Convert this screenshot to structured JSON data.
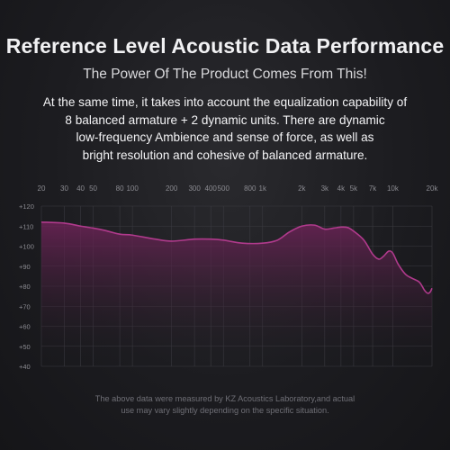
{
  "header": {
    "title": "Reference Level Acoustic Data Performance",
    "subtitle": "The Power Of The Product Comes From This!"
  },
  "description": {
    "lines": [
      "At the same time, it takes into account the equalization capability of",
      "8 balanced armature + 2 dynamic units. There are dynamic",
      "low-frequency Ambience and sense of force, as well as",
      "bright resolution and cohesive of balanced armature."
    ]
  },
  "footer": {
    "lines": [
      "The above data were measured by KZ Acoustics Laboratory,and actual",
      "use may vary slightly depending on the specific situation."
    ]
  },
  "colors": {
    "curve": "#b03a8c",
    "fill_top": "#6e2358",
    "grid": "#3a3a40",
    "tick_text": "#8a8a90"
  },
  "chart_data": {
    "type": "area",
    "title": "",
    "xlabel": "",
    "ylabel": "",
    "x_scale": "log",
    "xlim": [
      20,
      20000
    ],
    "ylim": [
      40,
      120
    ],
    "grid": true,
    "x_ticks": [
      {
        "value": 20,
        "label": "20"
      },
      {
        "value": 30,
        "label": "30"
      },
      {
        "value": 40,
        "label": "40"
      },
      {
        "value": 50,
        "label": "50"
      },
      {
        "value": 80,
        "label": "80"
      },
      {
        "value": 100,
        "label": "100"
      },
      {
        "value": 200,
        "label": "200"
      },
      {
        "value": 300,
        "label": "300"
      },
      {
        "value": 400,
        "label": "400"
      },
      {
        "value": 500,
        "label": "500"
      },
      {
        "value": 800,
        "label": "800"
      },
      {
        "value": 1000,
        "label": "1k"
      },
      {
        "value": 2000,
        "label": "2k"
      },
      {
        "value": 3000,
        "label": "3k"
      },
      {
        "value": 4000,
        "label": "4k"
      },
      {
        "value": 5000,
        "label": "5k"
      },
      {
        "value": 7000,
        "label": "7k"
      },
      {
        "value": 10000,
        "label": "10k"
      },
      {
        "value": 20000,
        "label": "20k"
      }
    ],
    "y_ticks": [
      {
        "value": 120,
        "label": "+120"
      },
      {
        "value": 110,
        "label": "+110"
      },
      {
        "value": 100,
        "label": "+100"
      },
      {
        "value": 90,
        "label": "+90"
      },
      {
        "value": 80,
        "label": "+80"
      },
      {
        "value": 70,
        "label": "+70"
      },
      {
        "value": 60,
        "label": "+60"
      },
      {
        "value": 50,
        "label": "+50"
      },
      {
        "value": 40,
        "label": "+40"
      }
    ],
    "series": [
      {
        "points": [
          [
            20,
            112
          ],
          [
            30,
            111.5
          ],
          [
            40,
            110
          ],
          [
            50,
            109
          ],
          [
            60,
            108
          ],
          [
            80,
            106
          ],
          [
            100,
            105.5
          ],
          [
            150,
            103.5
          ],
          [
            200,
            102.5
          ],
          [
            300,
            103.5
          ],
          [
            400,
            103.5
          ],
          [
            500,
            103
          ],
          [
            700,
            101.5
          ],
          [
            1000,
            101.5
          ],
          [
            1300,
            103
          ],
          [
            1600,
            107
          ],
          [
            2000,
            110
          ],
          [
            2500,
            110.5
          ],
          [
            3000,
            108.5
          ],
          [
            3500,
            109
          ],
          [
            4000,
            109.5
          ],
          [
            4500,
            109.3
          ],
          [
            5000,
            107.5
          ],
          [
            6000,
            103
          ],
          [
            7000,
            96
          ],
          [
            7800,
            93.5
          ],
          [
            8500,
            95
          ],
          [
            9300,
            97.5
          ],
          [
            10000,
            96.5
          ],
          [
            11000,
            91
          ],
          [
            12500,
            86
          ],
          [
            14000,
            84
          ],
          [
            16000,
            82
          ],
          [
            17500,
            78
          ],
          [
            18500,
            76.5
          ],
          [
            19300,
            77
          ],
          [
            20000,
            79
          ]
        ]
      }
    ]
  }
}
